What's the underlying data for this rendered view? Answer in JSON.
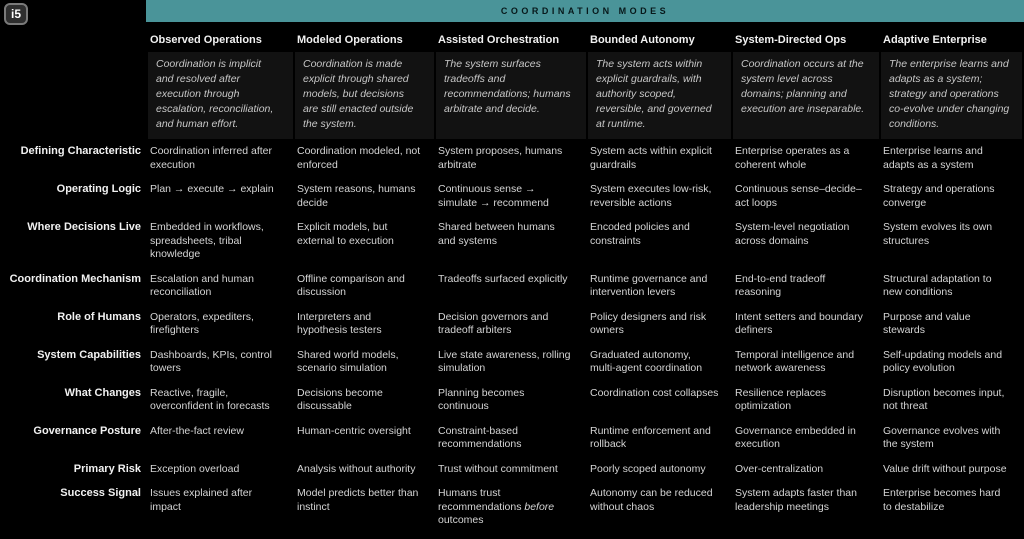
{
  "logo": {
    "text": "i5"
  },
  "banner": {
    "title": "COORDINATION MODES",
    "color": "#4A9499"
  },
  "table": {
    "columns": [
      {
        "header": "Observed Operations",
        "description": "Coordination is implicit and resolved after execution through escalation, reconciliation, and human effort."
      },
      {
        "header": "Modeled Operations",
        "description": "Coordination is made explicit through shared models, but decisions are still enacted outside the system."
      },
      {
        "header": "Assisted Orchestration",
        "description": "The system surfaces tradeoffs and recommendations; humans arbitrate and decide."
      },
      {
        "header": "Bounded Autonomy",
        "description": "The system acts within explicit guardrails, with authority scoped, reversible, and governed at runtime."
      },
      {
        "header": "System-Directed Ops",
        "description": "Coordination occurs at the system level across domains; planning and execution are inseparable."
      },
      {
        "header": "Adaptive Enterprise",
        "description": "The enterprise learns and adapts as a system; strategy and operations co-evolve under changing conditions."
      }
    ],
    "rows": [
      {
        "label": "Defining Characteristic",
        "cells": [
          "Coordination inferred after execution",
          "Coordination modeled, not enforced",
          "System proposes, humans arbitrate",
          "System acts within explicit guardrails",
          "Enterprise operates as a coherent whole",
          "Enterprise learns and adapts as a system"
        ]
      },
      {
        "label": "Operating Logic",
        "cells": [
          "Plan → execute → explain",
          "System reasons, humans decide",
          "Continuous sense → simulate → recommend",
          "System executes low-risk, reversible actions",
          "Continuous sense–decide–act loops",
          "Strategy and operations converge"
        ]
      },
      {
        "label": "Where Decisions Live",
        "cells": [
          "Embedded in workflows, spreadsheets, tribal knowledge",
          "Explicit models, but external to execution",
          "Shared between humans and systems",
          "Encoded policies and constraints",
          "System-level negotiation across domains",
          "System evolves its own structures"
        ]
      },
      {
        "label": "Coordination Mechanism",
        "cells": [
          "Escalation and human reconciliation",
          "Offline comparison and discussion",
          "Tradeoffs surfaced explicitly",
          "Runtime governance and intervention levers",
          "End-to-end tradeoff reasoning",
          "Structural adaptation to new conditions"
        ]
      },
      {
        "label": "Role of Humans",
        "cells": [
          "Operators, expediters, firefighters",
          "Interpreters and hypothesis testers",
          "Decision governors and tradeoff arbiters",
          "Policy designers and risk owners",
          "Intent setters and boundary definers",
          "Purpose and value stewards"
        ]
      },
      {
        "label": "System Capabilities",
        "cells": [
          "Dashboards, KPIs, control towers",
          "Shared world models, scenario simulation",
          "Live state awareness, rolling simulation",
          "Graduated autonomy, multi-agent coordination",
          "Temporal intelligence and network awareness",
          "Self-updating models and policy evolution"
        ]
      },
      {
        "label": "What Changes",
        "cells": [
          "Reactive, fragile, overconfident in forecasts",
          "Decisions become discussable",
          "Planning becomes continuous",
          "Coordination cost collapses",
          "Resilience replaces optimization",
          "Disruption becomes input, not threat"
        ]
      },
      {
        "label": "Governance Posture",
        "cells": [
          "After-the-fact review",
          "Human-centric oversight",
          "Constraint-based recommendations",
          "Runtime enforcement and rollback",
          "Governance embedded in execution",
          "Governance evolves with the system"
        ]
      },
      {
        "label": "Primary Risk",
        "cells": [
          "Exception overload",
          "Analysis without authority",
          "Trust without commitment",
          "Poorly scoped autonomy",
          "Over-centralization",
          "Value drift without purpose"
        ]
      },
      {
        "label": "Success Signal",
        "cells": [
          "Issues explained after impact",
          "Model predicts better than instinct",
          "Humans trust recommendations *before* outcomes",
          "Autonomy can be reduced without chaos",
          "System adapts faster than leadership meetings",
          "Enterprise becomes hard to destabilize"
        ]
      }
    ]
  }
}
